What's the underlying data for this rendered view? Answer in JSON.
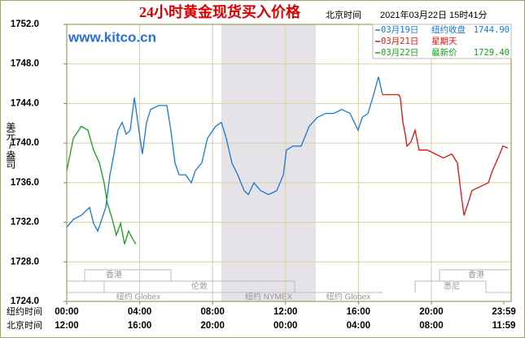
{
  "chart_data": {
    "type": "line",
    "title": "24小时黄金现货买入价格",
    "subtitle_label": "北京时间",
    "timestamp": "2021年03月22日 15时41分",
    "watermark": "www.kitco.cn",
    "y_label": "美元/盎司",
    "x_row_labels": [
      "纽约时间",
      "北京时间"
    ],
    "xlim": [
      0,
      24.38
    ],
    "xticks": [
      {
        "value": 0,
        "label": "00:00"
      },
      {
        "value": 4,
        "label": "04:00"
      },
      {
        "value": 8,
        "label": "08:00"
      },
      {
        "value": 12,
        "label": "12:00"
      },
      {
        "value": 16,
        "label": "16:00"
      },
      {
        "value": 20,
        "label": "20:00"
      },
      {
        "value": 23.98,
        "label": "23:59"
      }
    ],
    "xticks_beijing": [
      "12:00",
      "16:00",
      "20:00",
      "00:00",
      "04:00",
      "08:00",
      "11:59"
    ],
    "ylim": [
      1724,
      1752
    ],
    "yticks": [
      {
        "value": 1724,
        "label": "1724.0"
      },
      {
        "value": 1728,
        "label": "1728.0"
      },
      {
        "value": 1732,
        "label": "1732.0"
      },
      {
        "value": 1736,
        "label": "1736.0"
      },
      {
        "value": 1740,
        "label": "1740.0"
      },
      {
        "value": 1744,
        "label": "1744.0"
      },
      {
        "value": 1748,
        "label": "1748.0"
      },
      {
        "value": 1752,
        "label": "1752.0"
      }
    ],
    "grid": true,
    "sessions": [
      "香港",
      "伦敦",
      "纽约 Globex",
      "纽约 NYMEX",
      "纽约 Globex",
      "香港",
      "悉尼"
    ],
    "series": [
      {
        "name": "03月19日",
        "note": "纽约收盘",
        "price": "1744.90",
        "color": "#1a78d8",
        "x": [
          0,
          0.36,
          0.8,
          1.25,
          1.47,
          1.7,
          2.14,
          2.37,
          2.59,
          2.81,
          3.04,
          3.26,
          3.48,
          3.71,
          3.93,
          4.15,
          4.38,
          4.6,
          5.04,
          5.49,
          5.71,
          5.94,
          6.16,
          6.52,
          6.83,
          7.05,
          7.41,
          7.72,
          8.17,
          8.48,
          8.75,
          9.06,
          9.38,
          9.73,
          9.96,
          10.27,
          10.63,
          11.07,
          11.52,
          11.88,
          12.05,
          12.41,
          12.86,
          13.3,
          13.75,
          14.2,
          14.64,
          15.09,
          15.54,
          15.98,
          16.21,
          16.52,
          16.79,
          17.1,
          17.32
        ],
        "values": [
          1731.5,
          1732.3,
          1732.7,
          1733.5,
          1731.9,
          1731.1,
          1733.5,
          1736.8,
          1738.9,
          1741.3,
          1742.1,
          1740.9,
          1741.3,
          1744.6,
          1741.7,
          1738.9,
          1742.1,
          1743.4,
          1743.8,
          1743.8,
          1741.3,
          1738.0,
          1736.8,
          1736.8,
          1736.0,
          1737.2,
          1738.0,
          1740.5,
          1741.7,
          1742.1,
          1740.5,
          1738.0,
          1736.8,
          1735.2,
          1734.8,
          1736.0,
          1735.2,
          1734.8,
          1735.2,
          1736.8,
          1739.3,
          1739.7,
          1739.7,
          1741.7,
          1742.6,
          1743.0,
          1743.0,
          1743.4,
          1743.0,
          1741.3,
          1742.6,
          1743.0,
          1744.6,
          1746.7,
          1744.9
        ]
      },
      {
        "name": "03月21日",
        "note": "星期天",
        "color": "#e01010",
        "x": [
          17.32,
          18.21,
          18.3,
          18.44,
          18.57,
          18.66,
          18.88,
          19.11,
          19.33,
          19.78,
          20.22,
          20.67,
          21.12,
          21.43,
          21.61,
          21.79,
          22.01,
          22.23,
          22.68,
          23.13,
          23.35,
          23.66,
          23.93,
          24.2
        ],
        "values": [
          1744.9,
          1744.9,
          1744.6,
          1742.1,
          1740.9,
          1739.7,
          1740.1,
          1741.3,
          1739.3,
          1739.3,
          1738.9,
          1738.5,
          1738.9,
          1738.0,
          1735.2,
          1732.7,
          1733.9,
          1735.2,
          1735.6,
          1736.0,
          1737.2,
          1738.5,
          1739.7,
          1739.5
        ]
      },
      {
        "name": "03月22日",
        "note": "最新价",
        "price": "1729.40",
        "color": "#18a018",
        "x": [
          0,
          0.36,
          0.8,
          1.16,
          1.47,
          1.79,
          2.05,
          2.23,
          2.5,
          2.72,
          2.95,
          3.17,
          3.39,
          3.62,
          3.79
        ],
        "values": [
          1737.2,
          1740.5,
          1741.7,
          1741.3,
          1739.3,
          1738.0,
          1736.0,
          1733.9,
          1732.3,
          1730.7,
          1731.9,
          1729.8,
          1731.1,
          1730.3,
          1729.8
        ]
      }
    ]
  }
}
